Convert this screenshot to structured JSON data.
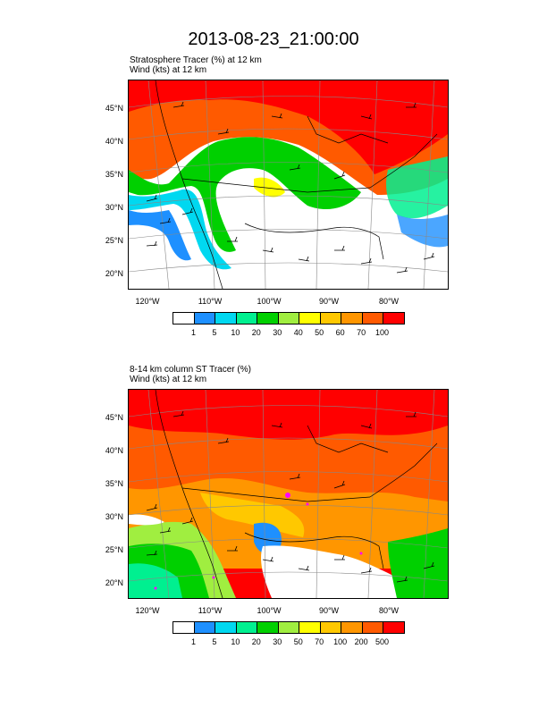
{
  "title": "2013-08-23_21:00:00",
  "panels": [
    {
      "subtitle1": "Stratosphere Tracer   (%)     at   12 km",
      "subtitle2": "Wind   (kts)     at   12 km",
      "lat_labels": [
        "45°N",
        "40°N",
        "35°N",
        "30°N",
        "25°N",
        "20°N"
      ],
      "lon_labels": [
        "120°W",
        "110°W",
        "100°W",
        "90°W",
        "80°W"
      ],
      "colorbar_colors": [
        "#ffffff",
        "#1e90ff",
        "#00d8f0",
        "#00f090",
        "#00d000",
        "#a0ee40",
        "#ffff00",
        "#ffc800",
        "#ff9600",
        "#ff5a00",
        "#ff0000"
      ],
      "colorbar_labels": [
        "1",
        "5",
        "10",
        "20",
        "30",
        "40",
        "50",
        "60",
        "70",
        "100"
      ]
    },
    {
      "subtitle1": "8-14 km column ST Tracer   (%)",
      "subtitle2": "Wind   (kts)     at   12 km",
      "lat_labels": [
        "45°N",
        "40°N",
        "35°N",
        "30°N",
        "25°N",
        "20°N"
      ],
      "lon_labels": [
        "120°W",
        "110°W",
        "100°W",
        "90°W",
        "80°W"
      ],
      "colorbar_colors": [
        "#ffffff",
        "#1e90ff",
        "#00d8f0",
        "#00f090",
        "#00d000",
        "#a0ee40",
        "#ffff00",
        "#ffc800",
        "#ff9600",
        "#ff5a00",
        "#ff0000"
      ],
      "colorbar_labels": [
        "1",
        "5",
        "10",
        "20",
        "30",
        "50",
        "70",
        "100",
        "200",
        "500"
      ]
    }
  ]
}
